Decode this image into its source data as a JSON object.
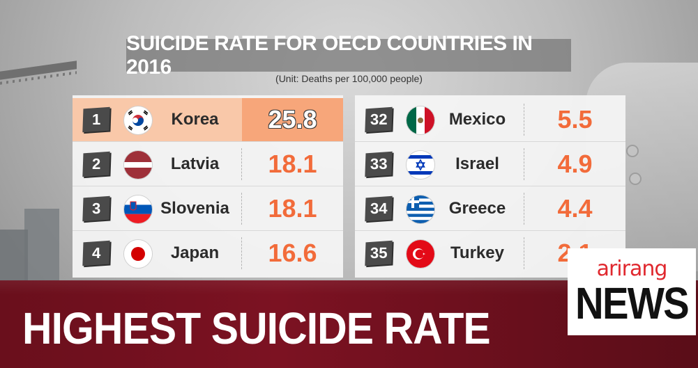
{
  "title": "SUICIDE RATE FOR OECD COUNTRIES IN 2016",
  "unit": "(Unit: Deaths per 100,000 people)",
  "left_table": [
    {
      "rank": "1",
      "country": "Korea",
      "value": "25.8",
      "flag": "south-korea-flag",
      "highlight": true
    },
    {
      "rank": "2",
      "country": "Latvia",
      "value": "18.1",
      "flag": "latvia-flag"
    },
    {
      "rank": "3",
      "country": "Slovenia",
      "value": "18.1",
      "flag": "slovenia-flag"
    },
    {
      "rank": "4",
      "country": "Japan",
      "value": "16.6",
      "flag": "japan-flag"
    }
  ],
  "right_table": [
    {
      "rank": "32",
      "country": "Mexico",
      "value": "5.5",
      "flag": "mexico-flag"
    },
    {
      "rank": "33",
      "country": "Israel",
      "value": "4.9",
      "flag": "israel-flag"
    },
    {
      "rank": "34",
      "country": "Greece",
      "value": "4.4",
      "flag": "greece-flag"
    },
    {
      "rank": "35",
      "country": "Turkey",
      "value": "2.1",
      "flag": "turkey-flag"
    }
  ],
  "headline": "HIGHEST SUICIDE RATE",
  "logo": {
    "top": "arirang",
    "bottom": "NEWS"
  },
  "colors": {
    "value": "#f26b3a",
    "highlight_row": "#f9c8a9",
    "highlight_value": "#f7a67a",
    "band": "#7c1222",
    "logo_red": "#e0282e"
  }
}
